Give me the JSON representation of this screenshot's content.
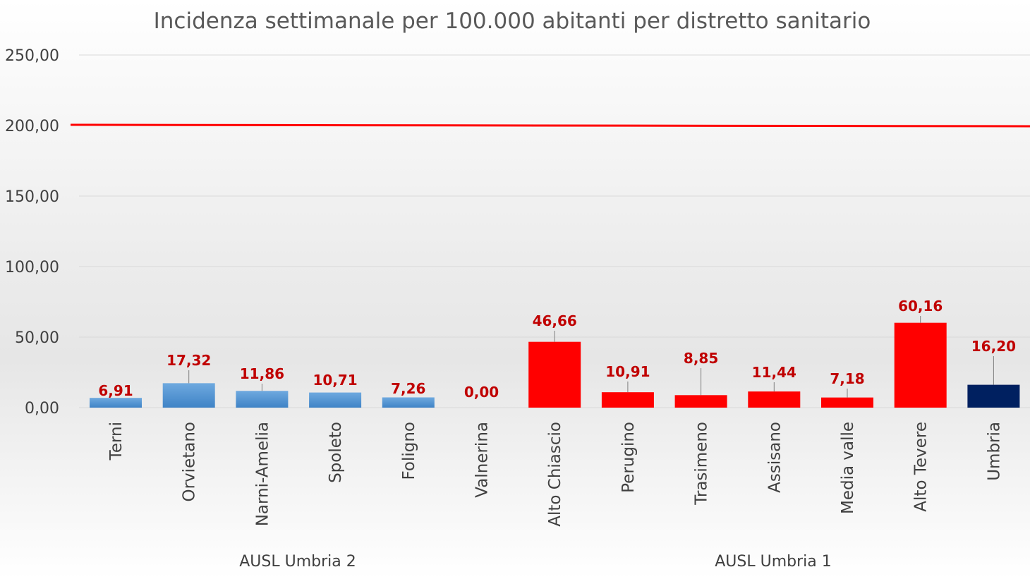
{
  "chart_data": {
    "type": "bar",
    "title": "Incidenza settimanale per 100.000 abitanti per distretto sanitario",
    "xlabel": "",
    "ylabel": "",
    "ylim": [
      0,
      250
    ],
    "y_ticks": [
      "0,00",
      "50,00",
      "100,00",
      "150,00",
      "200,00",
      "250,00"
    ],
    "grid": true,
    "categories": [
      "Terni",
      "Orvietano",
      "Narni-Amelia",
      "Spoleto",
      "Foligno",
      "Valnerina",
      "Alto Chiascio",
      "Perugino",
      "Trasimeno",
      "Assisano",
      "Media valle",
      "Alto Tevere",
      "Umbria"
    ],
    "values": [
      6.91,
      17.32,
      11.86,
      10.71,
      7.26,
      0.0,
      46.66,
      10.91,
      8.85,
      11.44,
      7.18,
      60.16,
      16.2
    ],
    "value_labels": [
      "6,91",
      "17,32",
      "11,86",
      "10,71",
      "7,26",
      "0,00",
      "46,66",
      "10,91",
      "8,85",
      "11,44",
      "7,18",
      "60,16",
      "16,20"
    ],
    "bar_colors": [
      "#5b9bd5",
      "#5b9bd5",
      "#5b9bd5",
      "#5b9bd5",
      "#5b9bd5",
      "#5b9bd5",
      "#ff0000",
      "#ff0000",
      "#ff0000",
      "#ff0000",
      "#ff0000",
      "#ff0000",
      "#002060"
    ],
    "groups": [
      {
        "label": "AUSL Umbria 2",
        "categories": [
          "Terni",
          "Orvietano",
          "Narni-Amelia",
          "Spoleto",
          "Foligno",
          "Valnerina"
        ]
      },
      {
        "label": "AUSL Umbria 1",
        "categories": [
          "Alto Chiascio",
          "Perugino",
          "Trasimeno",
          "Assisano",
          "Media valle",
          "Alto Tevere"
        ]
      }
    ],
    "reference_line": {
      "value": 200,
      "color": "#ff0000"
    },
    "colors": {
      "data_label": "#c00000",
      "grid": "#d9d9d9",
      "text": "#404040",
      "title": "#595959"
    }
  }
}
